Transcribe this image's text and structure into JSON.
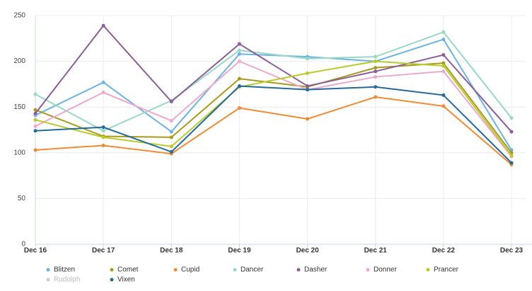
{
  "chart_data": {
    "type": "line",
    "categories": [
      "Dec 16",
      "Dec 17",
      "Dec 18",
      "Dec 19",
      "Dec 20",
      "Dec 21",
      "Dec 22",
      "Dec 23"
    ],
    "ylim": [
      0,
      250
    ],
    "yticks": [
      0,
      50,
      100,
      150,
      200,
      250
    ],
    "grid": true,
    "legend": "bottom",
    "series": [
      {
        "name": "Blitzen",
        "color": "#6cb4e4",
        "values": [
          141,
          177,
          123,
          208,
          205,
          200,
          224,
          103
        ]
      },
      {
        "name": "Comet",
        "color": "#a89a1a",
        "values": [
          147,
          118,
          117,
          181,
          172,
          193,
          198,
          100
        ]
      },
      {
        "name": "Cupid",
        "color": "#f28a30",
        "values": [
          103,
          108,
          99,
          149,
          137,
          161,
          151,
          87
        ]
      },
      {
        "name": "Dancer",
        "color": "#98d9c6",
        "values": [
          164,
          124,
          157,
          212,
          203,
          205,
          232,
          138
        ]
      },
      {
        "name": "Dasher",
        "color": "#8b5e99",
        "values": [
          143,
          239,
          156,
          219,
          173,
          189,
          207,
          123
        ]
      },
      {
        "name": "Donner",
        "color": "#f0a8cc",
        "values": [
          129,
          166,
          135,
          200,
          169,
          183,
          189,
          96
        ]
      },
      {
        "name": "Prancer",
        "color": "#b8cc2a",
        "values": [
          136,
          117,
          107,
          172,
          187,
          200,
          195,
          97
        ]
      },
      {
        "name": "Rudolph",
        "color": "#c8c8c8",
        "visible": false,
        "values": [
          null,
          null,
          null,
          null,
          null,
          null,
          null,
          null
        ]
      },
      {
        "name": "Vixen",
        "color": "#236b9a",
        "values": [
          124,
          128,
          101,
          173,
          169,
          172,
          163,
          89
        ]
      }
    ]
  }
}
